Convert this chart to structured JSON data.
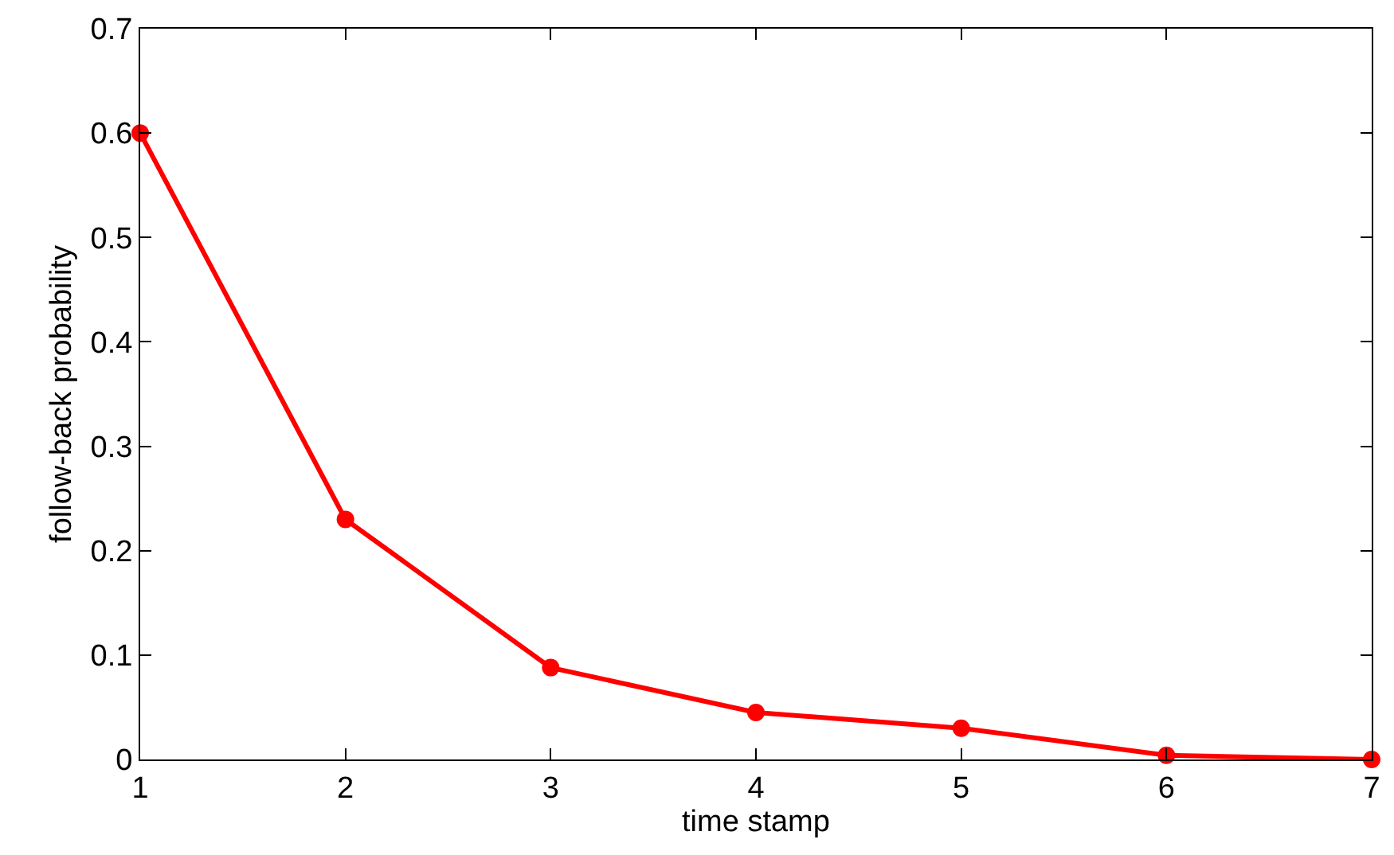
{
  "chart_data": {
    "type": "line",
    "xlabel": "time stamp",
    "ylabel": "follow-back probability",
    "x": [
      1,
      2,
      3,
      4,
      5,
      6,
      7
    ],
    "series": [
      {
        "color": "#ff0000",
        "values": [
          0.6,
          0.23,
          0.088,
          0.045,
          0.03,
          0.004,
          0.0
        ]
      }
    ],
    "xlim": [
      1,
      7
    ],
    "ylim": [
      0,
      0.7
    ],
    "xticks": [
      1,
      2,
      3,
      4,
      5,
      6,
      7
    ],
    "yticks": [
      0,
      0.1,
      0.2,
      0.3,
      0.4,
      0.5,
      0.6,
      0.7
    ],
    "marker": "circle",
    "line_style": "solid"
  }
}
